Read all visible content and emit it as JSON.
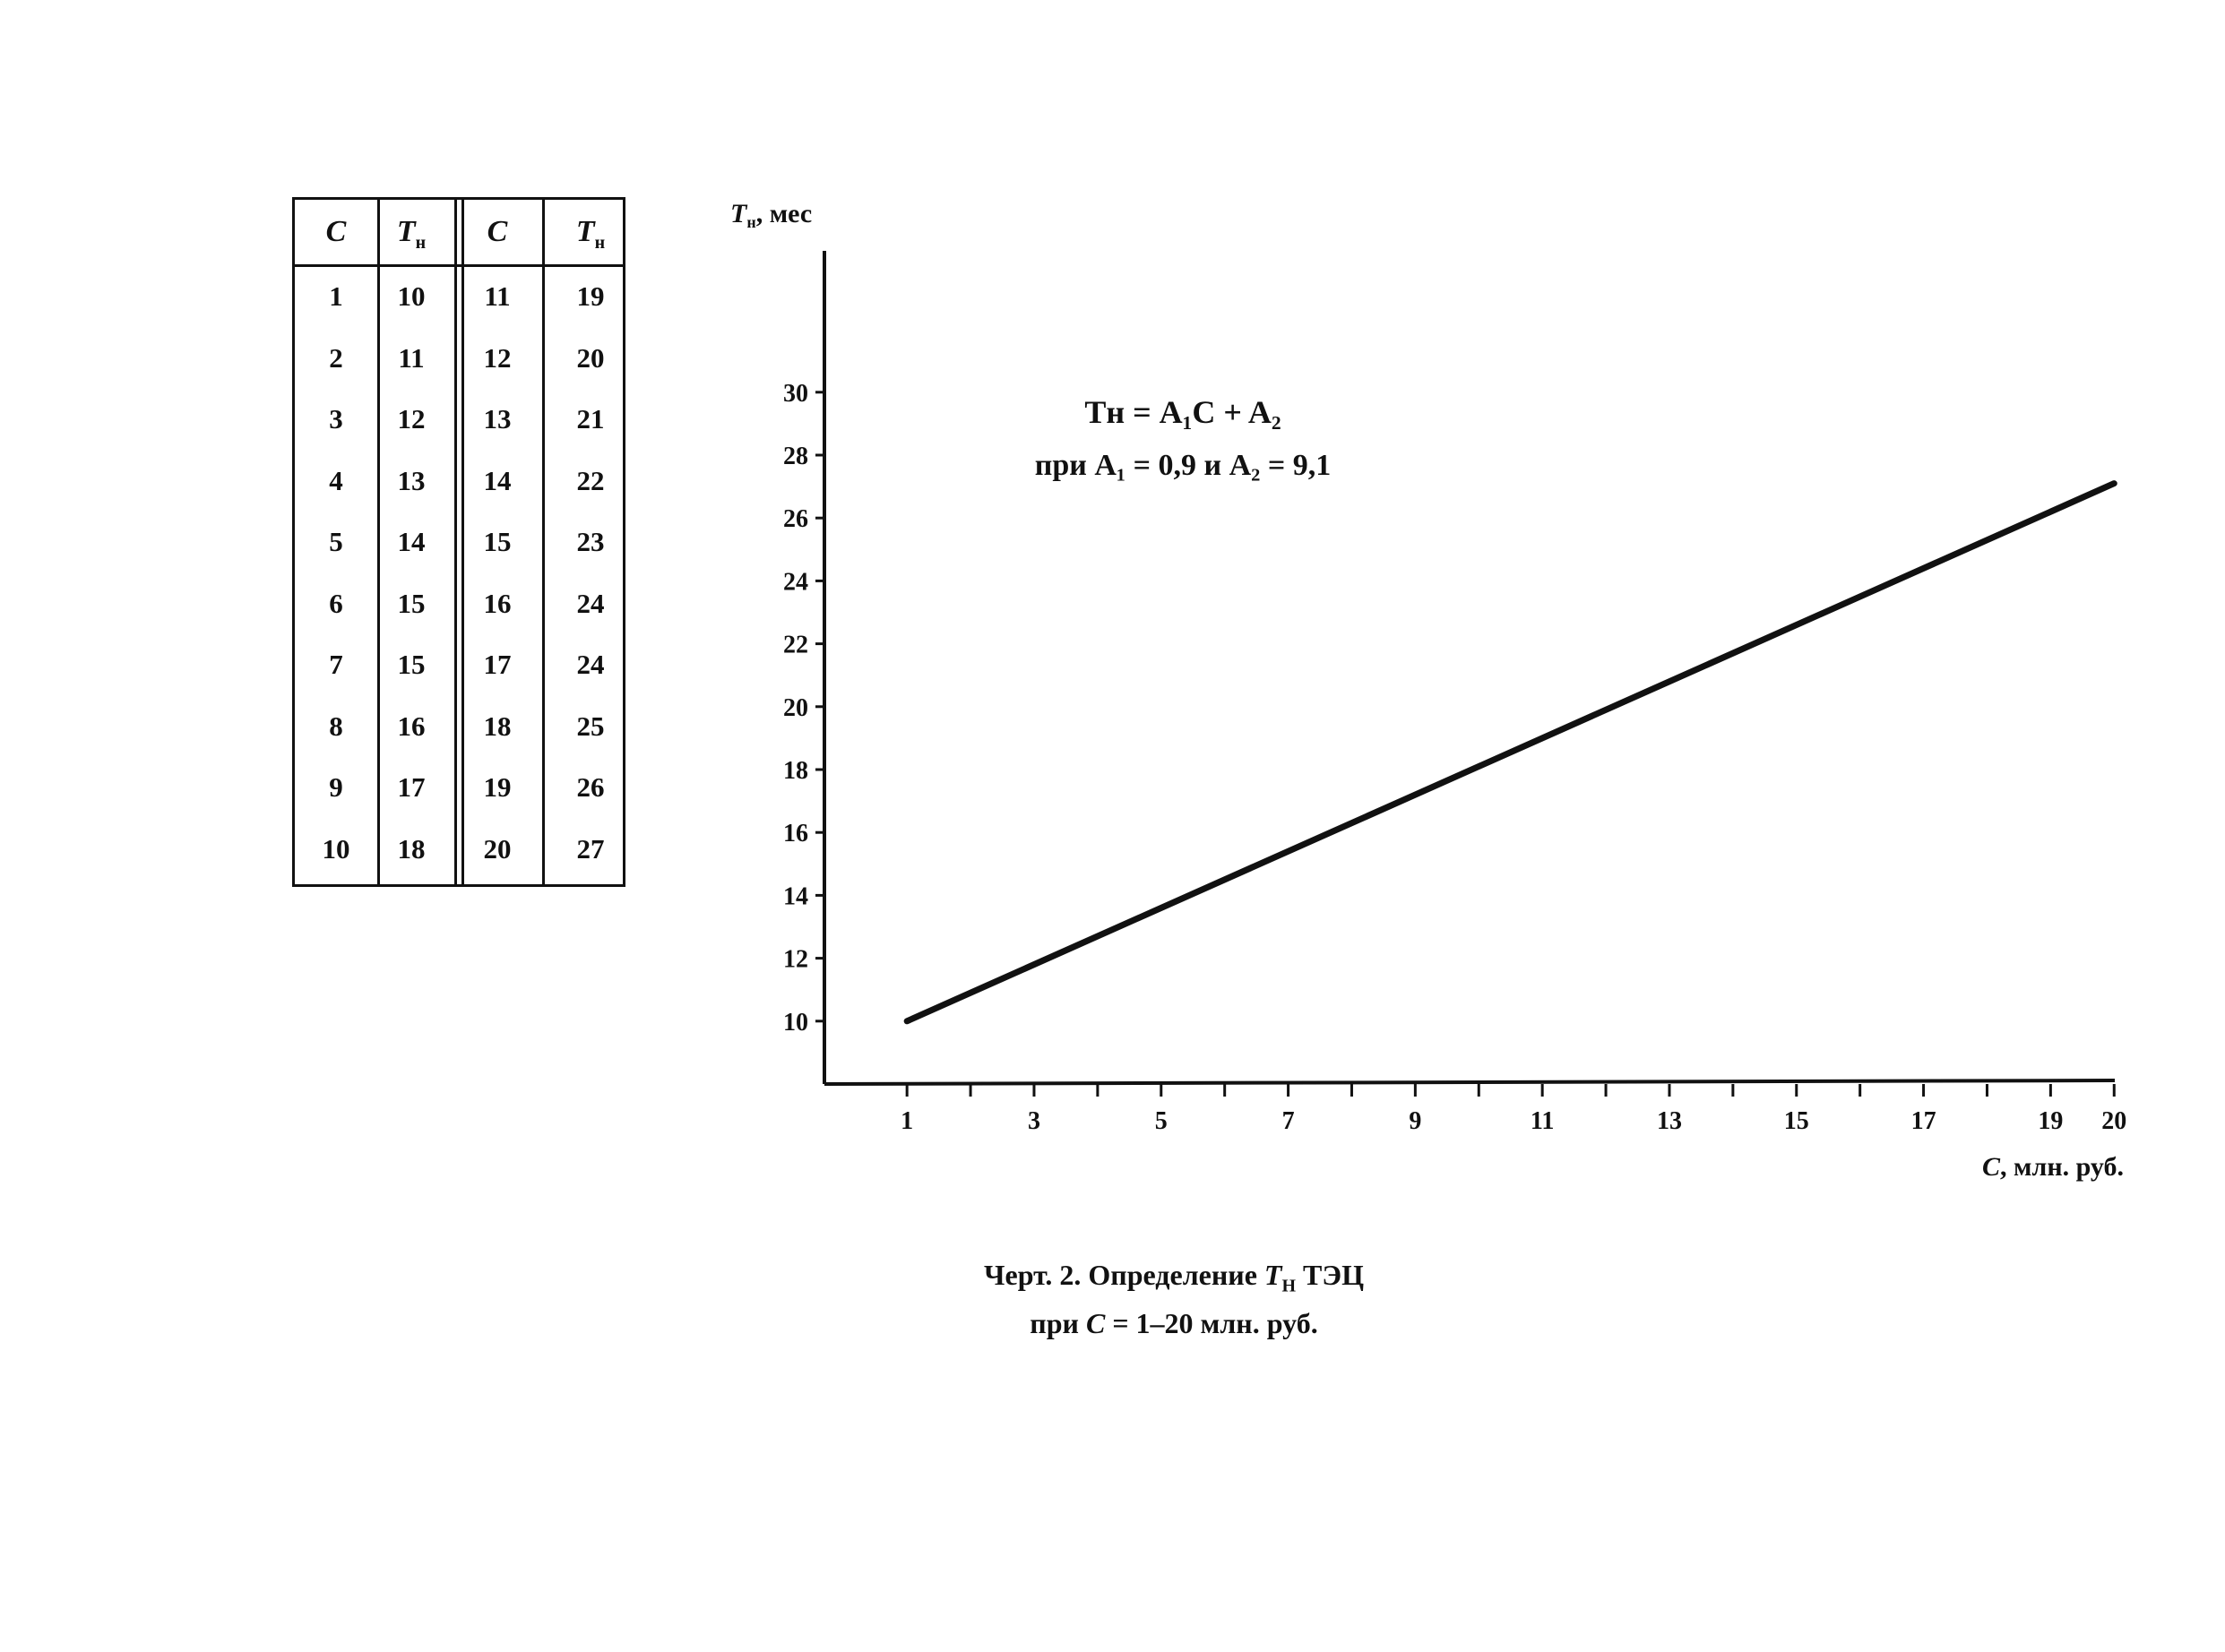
{
  "table": {
    "headers": [
      "C",
      "Tн",
      "C",
      "Tн"
    ],
    "rows": [
      [
        "1",
        "10",
        "11",
        "19"
      ],
      [
        "2",
        "11",
        "12",
        "20"
      ],
      [
        "3",
        "12",
        "13",
        "21"
      ],
      [
        "4",
        "13",
        "14",
        "22"
      ],
      [
        "5",
        "14",
        "15",
        "23"
      ],
      [
        "6",
        "15",
        "16",
        "24"
      ],
      [
        "7",
        "15",
        "17",
        "24"
      ],
      [
        "8",
        "16",
        "18",
        "25"
      ],
      [
        "9",
        "17",
        "19",
        "26"
      ],
      [
        "10",
        "18",
        "20",
        "27"
      ]
    ]
  },
  "chart_data": {
    "type": "line",
    "ylabel": "Tн, мес",
    "xlabel": "C, млн. руб.",
    "xlim": [
      0,
      20.3
    ],
    "ylim": [
      8,
      34
    ],
    "xticks_labeled": [
      1,
      3,
      5,
      7,
      9,
      11,
      13,
      15,
      17,
      19,
      20
    ],
    "xticks_minor": [
      2,
      4,
      6,
      8,
      10,
      12,
      14,
      16,
      18
    ],
    "yticks": [
      10,
      12,
      14,
      16,
      18,
      20,
      22,
      24,
      26,
      28,
      30
    ],
    "series": [
      {
        "x": [
          1,
          20
        ],
        "y": [
          10,
          27.1
        ]
      }
    ],
    "annotation": {
      "formula": "Tн = A₁C + A₂",
      "condition": "при A₁ = 0,9 и A₂ = 9,1"
    },
    "grid": false,
    "line_color": "#111111"
  },
  "caption": {
    "line1_prefix": "Черт. 2. Определение ",
    "line1_var": "T",
    "line1_sub": "Н",
    "line1_suffix": " ТЭЦ",
    "line2_prefix": "при ",
    "line2_var": "C",
    "line2_suffix": " = 1–20 млн. руб."
  }
}
